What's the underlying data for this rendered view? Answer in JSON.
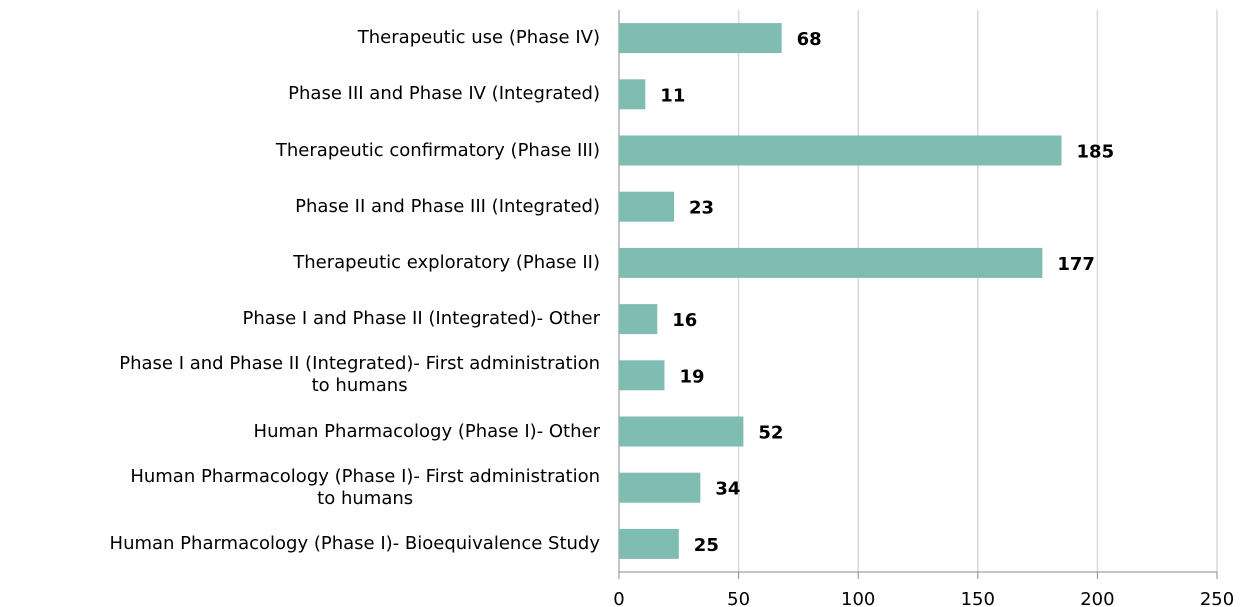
{
  "chart_data": {
    "type": "barh",
    "categories": [
      "Therapeutic use (Phase IV)",
      "Phase III and Phase IV (Integrated)",
      "Therapeutic confirmatory (Phase III)",
      "Phase II and Phase III (Integrated)",
      "Therapeutic exploratory (Phase II)",
      "Phase I and Phase II (Integrated)- Other",
      "Phase I and Phase II (Integrated)- First administration\nto humans",
      "Human Pharmacology (Phase I)- Other",
      "Human Pharmacology (Phase I)- First administration\nto humans",
      "Human Pharmacology (Phase I)- Bioequivalence Study"
    ],
    "values": [
      68,
      11,
      185,
      23,
      177,
      16,
      19,
      52,
      34,
      25
    ],
    "color": "#7fbcb1",
    "xlim": [
      0,
      250
    ],
    "xticks": [
      0,
      50,
      100,
      150,
      200,
      250
    ],
    "grid": true
  }
}
